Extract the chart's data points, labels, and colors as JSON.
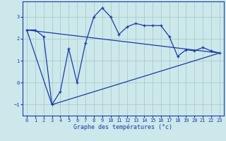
{
  "xlabel": "Graphe des températures (°c)",
  "bg_color": "#cce8ea",
  "grid_color": "#aacccc",
  "line_color": "#1a3aaa",
  "xlim": [
    -0.5,
    23.5
  ],
  "ylim": [
    -1.5,
    3.7
  ],
  "yticks": [
    -1,
    0,
    1,
    2,
    3
  ],
  "xticks": [
    0,
    1,
    2,
    3,
    4,
    5,
    6,
    7,
    8,
    9,
    10,
    11,
    12,
    13,
    14,
    15,
    16,
    17,
    18,
    19,
    20,
    21,
    22,
    23
  ],
  "curve_x": [
    0,
    1,
    2,
    3,
    4,
    5,
    6,
    7,
    8,
    9,
    10,
    11,
    12,
    13,
    14,
    15,
    16,
    17,
    18,
    19,
    20,
    21,
    22,
    23
  ],
  "curve_y": [
    2.4,
    2.4,
    2.1,
    -1.0,
    -0.4,
    1.55,
    0.0,
    1.8,
    3.0,
    3.4,
    3.0,
    2.2,
    2.55,
    2.7,
    2.6,
    2.6,
    2.6,
    2.1,
    1.2,
    1.5,
    1.45,
    1.6,
    1.45,
    1.35
  ],
  "line1_x": [
    0,
    23
  ],
  "line1_y": [
    2.4,
    1.35
  ],
  "line2_x": [
    3,
    23
  ],
  "line2_y": [
    -1.0,
    1.35
  ],
  "line3_x": [
    0,
    3
  ],
  "line3_y": [
    2.4,
    -1.0
  ]
}
